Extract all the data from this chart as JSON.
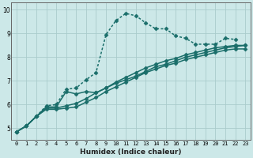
{
  "xlabel": "Humidex (Indice chaleur)",
  "bg_color": "#cce8e8",
  "grid_color": "#aacccc",
  "line_color": "#1a6e6a",
  "xlim": [
    -0.5,
    23.5
  ],
  "ylim": [
    4.5,
    10.3
  ],
  "xticks": [
    0,
    1,
    2,
    3,
    4,
    5,
    6,
    7,
    8,
    9,
    10,
    11,
    12,
    13,
    14,
    15,
    16,
    17,
    18,
    19,
    20,
    21,
    22,
    23
  ],
  "yticks": [
    5,
    6,
    7,
    8,
    9,
    10
  ],
  "series": [
    {
      "x": [
        0,
        1,
        2,
        3,
        4,
        5,
        6,
        7,
        8,
        9,
        10,
        11,
        12,
        13,
        14,
        15,
        16,
        17,
        18,
        19,
        20,
        21,
        22
      ],
      "y": [
        4.85,
        5.1,
        5.5,
        5.95,
        6.0,
        6.65,
        6.7,
        7.05,
        7.35,
        8.95,
        9.55,
        9.85,
        9.75,
        9.45,
        9.2,
        9.2,
        8.9,
        8.8,
        8.55,
        8.55,
        8.55,
        8.8,
        8.75
      ],
      "linestyle": "dotted",
      "linewidth": 1.1,
      "markersize": 2.5
    },
    {
      "x": [
        0,
        1,
        2,
        3,
        4,
        5,
        6,
        7,
        8,
        9,
        10,
        11,
        12,
        13,
        14,
        15,
        16,
        17,
        18,
        19,
        20,
        21,
        22,
        23
      ],
      "y": [
        4.85,
        5.1,
        5.5,
        5.9,
        5.9,
        6.55,
        6.45,
        6.55,
        6.5,
        6.7,
        6.9,
        7.05,
        7.2,
        7.4,
        7.6,
        7.7,
        7.85,
        8.0,
        8.1,
        8.2,
        8.3,
        8.4,
        8.45,
        8.5
      ],
      "linestyle": "solid",
      "linewidth": 1.1,
      "markersize": 2.5
    },
    {
      "x": [
        0,
        1,
        2,
        3,
        4,
        5,
        6,
        7,
        8,
        9,
        10,
        11,
        12,
        13,
        14,
        15,
        16,
        17,
        18,
        19,
        20,
        21,
        22,
        23
      ],
      "y": [
        4.85,
        5.1,
        5.5,
        5.85,
        5.85,
        5.95,
        6.05,
        6.25,
        6.5,
        6.7,
        6.95,
        7.15,
        7.35,
        7.55,
        7.7,
        7.85,
        7.95,
        8.1,
        8.2,
        8.3,
        8.4,
        8.45,
        8.5,
        8.5
      ],
      "linestyle": "solid",
      "linewidth": 1.1,
      "markersize": 2.5
    },
    {
      "x": [
        0,
        1,
        2,
        3,
        4,
        5,
        6,
        7,
        8,
        9,
        10,
        11,
        12,
        13,
        14,
        15,
        16,
        17,
        18,
        19,
        20,
        21,
        22,
        23
      ],
      "y": [
        4.85,
        5.1,
        5.5,
        5.8,
        5.8,
        5.85,
        5.9,
        6.1,
        6.3,
        6.55,
        6.75,
        6.95,
        7.15,
        7.35,
        7.5,
        7.65,
        7.75,
        7.9,
        8.0,
        8.1,
        8.2,
        8.3,
        8.35,
        8.35
      ],
      "linestyle": "solid",
      "linewidth": 1.1,
      "markersize": 2.5
    }
  ]
}
